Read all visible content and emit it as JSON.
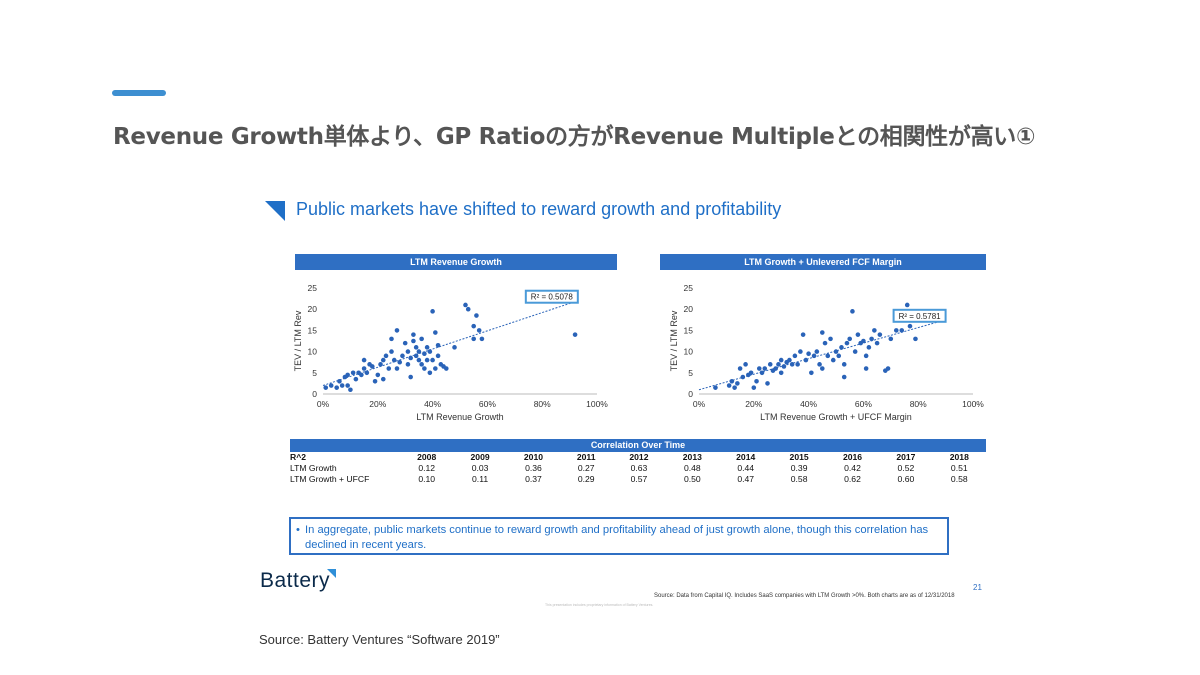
{
  "slide": {
    "title": "Revenue Growth単体より、GP Ratioの方がRevenue Multipleとの相関性が高い①",
    "subheading": "Public markets have shifted to reward growth and profitability",
    "accent_color": "#3d8fd1",
    "brand_blue": "#2f6fc3"
  },
  "chart_data": [
    {
      "type": "scatter",
      "banner": "LTM Revenue Growth",
      "xlabel": "LTM Revenue Growth",
      "ylabel": "TEV / LTM Rev",
      "xlim": [
        0,
        100
      ],
      "ylim": [
        0,
        25
      ],
      "xticks": [
        "0%",
        "20%",
        "40%",
        "60%",
        "80%",
        "100%"
      ],
      "yticks": [
        "0",
        "5",
        "10",
        "15",
        "20",
        "25"
      ],
      "trendline": {
        "from": [
          0,
          2
        ],
        "to": [
          93,
          22
        ]
      },
      "r2_label": "R² = 0.5078",
      "points": [
        [
          1,
          1.5
        ],
        [
          3,
          2
        ],
        [
          5,
          1.5
        ],
        [
          6,
          3
        ],
        [
          7,
          2
        ],
        [
          8,
          4
        ],
        [
          9,
          4.5
        ],
        [
          9,
          2
        ],
        [
          10,
          1
        ],
        [
          11,
          5
        ],
        [
          12,
          3.5
        ],
        [
          13,
          5
        ],
        [
          14,
          4.5
        ],
        [
          15,
          6
        ],
        [
          15,
          8
        ],
        [
          16,
          5
        ],
        [
          17,
          7
        ],
        [
          18,
          6.5
        ],
        [
          19,
          3
        ],
        [
          20,
          4.5
        ],
        [
          21,
          7
        ],
        [
          22,
          8
        ],
        [
          22,
          3.5
        ],
        [
          23,
          9
        ],
        [
          24,
          6
        ],
        [
          25,
          10
        ],
        [
          25,
          13
        ],
        [
          26,
          8
        ],
        [
          27,
          6
        ],
        [
          27,
          15
        ],
        [
          28,
          7.5
        ],
        [
          29,
          9
        ],
        [
          30,
          12
        ],
        [
          31,
          10
        ],
        [
          31,
          7
        ],
        [
          32,
          4
        ],
        [
          32,
          8.5
        ],
        [
          33,
          14
        ],
        [
          33,
          12.5
        ],
        [
          34,
          11
        ],
        [
          34,
          9
        ],
        [
          35,
          10
        ],
        [
          35,
          8
        ],
        [
          36,
          13
        ],
        [
          36,
          7
        ],
        [
          37,
          9.5
        ],
        [
          37,
          6
        ],
        [
          38,
          11
        ],
        [
          38,
          8
        ],
        [
          39,
          10
        ],
        [
          39,
          5
        ],
        [
          40,
          19.5
        ],
        [
          40,
          8
        ],
        [
          41,
          14.5
        ],
        [
          41,
          6
        ],
        [
          42,
          9
        ],
        [
          42,
          11.5
        ],
        [
          43,
          7
        ],
        [
          44,
          6.5
        ],
        [
          45,
          6
        ],
        [
          48,
          11
        ],
        [
          52,
          21
        ],
        [
          53,
          20
        ],
        [
          55,
          16
        ],
        [
          55,
          13
        ],
        [
          56,
          18.5
        ],
        [
          57,
          15
        ],
        [
          58,
          13
        ],
        [
          92,
          14
        ]
      ]
    },
    {
      "type": "scatter",
      "banner": "LTM Growth + Unlevered FCF Margin",
      "xlabel": "LTM Revenue Growth + UFCF Margin",
      "ylabel": "TEV / LTM Rev",
      "xlim": [
        0,
        100
      ],
      "ylim": [
        0,
        25
      ],
      "xticks": [
        "0%",
        "20%",
        "40%",
        "60%",
        "80%",
        "100%"
      ],
      "yticks": [
        "0",
        "5",
        "10",
        "15",
        "20",
        "25"
      ],
      "trendline": {
        "from": [
          0,
          1
        ],
        "to": [
          90,
          17.5
        ]
      },
      "r2_label": "R² = 0.5781",
      "points": [
        [
          6,
          1.5
        ],
        [
          11,
          2
        ],
        [
          12,
          3
        ],
        [
          13,
          1.5
        ],
        [
          14,
          2.5
        ],
        [
          15,
          6
        ],
        [
          16,
          4
        ],
        [
          17,
          7
        ],
        [
          18,
          4.5
        ],
        [
          19,
          5
        ],
        [
          20,
          1.5
        ],
        [
          21,
          3
        ],
        [
          22,
          6
        ],
        [
          23,
          5
        ],
        [
          24,
          6
        ],
        [
          25,
          2.5
        ],
        [
          26,
          7
        ],
        [
          27,
          5.5
        ],
        [
          28,
          6
        ],
        [
          29,
          7
        ],
        [
          30,
          5
        ],
        [
          30,
          8
        ],
        [
          31,
          6.5
        ],
        [
          32,
          7.5
        ],
        [
          33,
          8
        ],
        [
          34,
          7
        ],
        [
          35,
          9
        ],
        [
          36,
          7
        ],
        [
          37,
          10
        ],
        [
          38,
          14
        ],
        [
          39,
          8
        ],
        [
          40,
          9.5
        ],
        [
          41,
          5
        ],
        [
          42,
          9
        ],
        [
          43,
          10
        ],
        [
          44,
          7
        ],
        [
          45,
          6
        ],
        [
          45,
          14.5
        ],
        [
          46,
          12
        ],
        [
          47,
          9
        ],
        [
          48,
          13
        ],
        [
          49,
          8
        ],
        [
          50,
          10
        ],
        [
          51,
          9
        ],
        [
          52,
          11
        ],
        [
          53,
          7
        ],
        [
          53,
          4
        ],
        [
          54,
          12
        ],
        [
          55,
          13
        ],
        [
          56,
          19.5
        ],
        [
          57,
          10
        ],
        [
          58,
          14
        ],
        [
          59,
          12
        ],
        [
          60,
          12.5
        ],
        [
          61,
          9
        ],
        [
          61,
          6
        ],
        [
          62,
          11
        ],
        [
          63,
          13
        ],
        [
          64,
          15
        ],
        [
          65,
          12
        ],
        [
          66,
          14
        ],
        [
          68,
          5.5
        ],
        [
          69,
          6
        ],
        [
          70,
          13
        ],
        [
          72,
          15
        ],
        [
          73,
          19.5
        ],
        [
          74,
          15
        ],
        [
          76,
          21
        ],
        [
          77,
          16
        ],
        [
          79,
          13
        ]
      ]
    }
  ],
  "correlation": {
    "banner": "Correlation Over Time",
    "header_label": "R^2",
    "years": [
      "2008",
      "2009",
      "2010",
      "2011",
      "2012",
      "2013",
      "2014",
      "2015",
      "2016",
      "2017",
      "2018"
    ],
    "rows": [
      {
        "label": "LTM Growth",
        "values": [
          "0.12",
          "0.03",
          "0.36",
          "0.27",
          "0.63",
          "0.48",
          "0.44",
          "0.39",
          "0.42",
          "0.52",
          "0.51"
        ]
      },
      {
        "label": "LTM Growth + UFCF",
        "values": [
          "0.10",
          "0.11",
          "0.37",
          "0.29",
          "0.57",
          "0.50",
          "0.47",
          "0.58",
          "0.62",
          "0.60",
          "0.58"
        ]
      }
    ]
  },
  "note": {
    "bullet": "•",
    "text": "In aggregate, public markets continue to reward growth and profitability ahead of just growth alone, though this correlation has declined in recent years."
  },
  "logo": {
    "text": "Battery"
  },
  "page_number": "21",
  "source_small": "Source: Data from Capital IQ. Includes SaaS companies with LTM Growth >0%. Both charts are as of 12/31/2018",
  "legal_text": "This presentation includes proprietary information of Battery Ventures.",
  "footer_source": "Source: Battery Ventures “Software 2019”"
}
